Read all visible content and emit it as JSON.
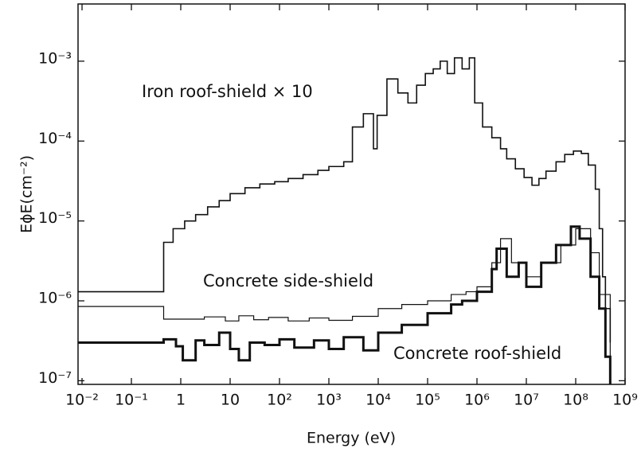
{
  "chart_data": {
    "type": "line",
    "drawstyle": "steps-post",
    "log_x": true,
    "log_y": true,
    "x_label": "Energy (eV)",
    "y_label": "EϕE(cm⁻²)",
    "xlim": [
      0.0083,
      1000000000
    ],
    "ylim": [
      9e-08,
      0.0052
    ],
    "xticks": [
      {
        "value": 0.01,
        "label": "10⁻²"
      },
      {
        "value": 0.1,
        "label": "10⁻¹"
      },
      1,
      10,
      {
        "value": 100,
        "label": "10²"
      },
      {
        "value": 1000,
        "label": "10³"
      },
      {
        "value": 10000,
        "label": "10⁴"
      },
      {
        "value": 100000,
        "label": "10⁵"
      },
      {
        "value": 1000000,
        "label": "10⁶"
      },
      {
        "value": 10000000,
        "label": "10⁷"
      },
      {
        "value": 100000000,
        "label": "10⁸"
      },
      {
        "value": 1000000000,
        "label": "10⁹"
      }
    ],
    "yticks": [
      {
        "value": 1e-07,
        "label": "10⁻⁷"
      },
      {
        "value": 1e-06,
        "label": "10⁻⁶"
      },
      {
        "value": 1e-05,
        "label": "10⁻⁵"
      },
      {
        "value": 0.0001,
        "label": "10⁻⁴"
      },
      {
        "value": 0.001,
        "label": "10⁻³"
      }
    ],
    "annotations": [
      "Iron roof-shield × 10",
      "Concrete side-shield",
      "Concrete roof-shield"
    ],
    "series": [
      {
        "name": "Iron roof-shield × 10",
        "color": "#111111",
        "width": 1.6,
        "x": [
          0.0083,
          0.45,
          0.7,
          1.2,
          2,
          3.5,
          6,
          10,
          20,
          40,
          80,
          150,
          300,
          600,
          1000,
          2000,
          3000,
          5000,
          8000,
          9500,
          15000,
          25000,
          40000,
          60000,
          90000,
          130000,
          180000,
          250000,
          350000,
          500000,
          700000,
          900000,
          1300000,
          2000000,
          3000000,
          4000000,
          6000000,
          9000000,
          13000000,
          18000000,
          25000000,
          40000000,
          60000000,
          90000000,
          130000000,
          180000000,
          250000000,
          300000000,
          350000000,
          400000000,
          500000000
        ],
        "values": [
          1.3e-06,
          5.4e-06,
          8e-06,
          1e-05,
          1.2e-05,
          1.5e-05,
          1.8e-05,
          2.2e-05,
          2.6e-05,
          2.9e-05,
          3.1e-05,
          3.4e-05,
          3.8e-05,
          4.3e-05,
          4.8e-05,
          5.5e-05,
          0.00015,
          0.00022,
          8e-05,
          0.00021,
          0.0006,
          0.0004,
          0.0003,
          0.0005,
          0.0007,
          0.0008,
          0.001,
          0.0007,
          0.0011,
          0.0008,
          0.0011,
          0.0003,
          0.00015,
          0.00011,
          8e-05,
          6e-05,
          4.5e-05,
          3.5e-05,
          2.8e-05,
          3.4e-05,
          4.2e-05,
          5.5e-05,
          6.8e-05,
          7.5e-05,
          7e-05,
          5e-05,
          2.5e-05,
          8e-06,
          2e-06,
          8e-07,
          3e-07
        ]
      },
      {
        "name": "Concrete side-shield",
        "color": "#111111",
        "width": 1.2,
        "x": [
          0.0083,
          0.45,
          3,
          8,
          15,
          30,
          60,
          150,
          400,
          1000,
          3000,
          10000,
          30000,
          100000,
          300000,
          600000,
          1000000,
          2000000,
          3000000,
          5000000,
          10000000,
          20000000,
          50000000,
          100000000,
          200000000,
          300000000,
          500000000
        ],
        "values": [
          8.5e-07,
          5.9e-07,
          6.3e-07,
          5.6e-07,
          6.5e-07,
          5.8e-07,
          6.2e-07,
          5.6e-07,
          6.1e-07,
          5.7e-07,
          6.4e-07,
          8e-07,
          9e-07,
          1e-06,
          1.2e-06,
          1.3e-06,
          1.5e-06,
          3e-06,
          6e-06,
          3e-06,
          2e-06,
          3e-06,
          5e-06,
          8e-06,
          4e-06,
          1.2e-06,
          2e-07
        ]
      },
      {
        "name": "Concrete roof-shield",
        "color": "#111111",
        "width": 3,
        "x": [
          0.0083,
          0.45,
          0.8,
          1.1,
          2,
          3,
          6,
          10,
          15,
          25,
          50,
          100,
          200,
          500,
          1000,
          2000,
          5000,
          10000,
          30000,
          100000,
          300000,
          500000,
          1000000,
          2000000,
          2500000,
          4000000,
          7000000,
          10000000,
          20000000,
          40000000,
          80000000,
          120000000,
          200000000,
          300000000,
          400000000,
          500000000
        ],
        "values": [
          3e-07,
          3.3e-07,
          2.7e-07,
          1.8e-07,
          3.2e-07,
          2.8e-07,
          4e-07,
          2.5e-07,
          1.8e-07,
          3e-07,
          2.8e-07,
          3.3e-07,
          2.6e-07,
          3.2e-07,
          2.5e-07,
          3.5e-07,
          2.4e-07,
          4e-07,
          5e-07,
          7e-07,
          9e-07,
          1e-06,
          1.3e-06,
          2.5e-06,
          4.5e-06,
          2e-06,
          3e-06,
          1.5e-06,
          3e-06,
          5e-06,
          8.5e-06,
          6e-06,
          2e-06,
          8e-07,
          2e-07,
          9e-08
        ]
      }
    ]
  }
}
